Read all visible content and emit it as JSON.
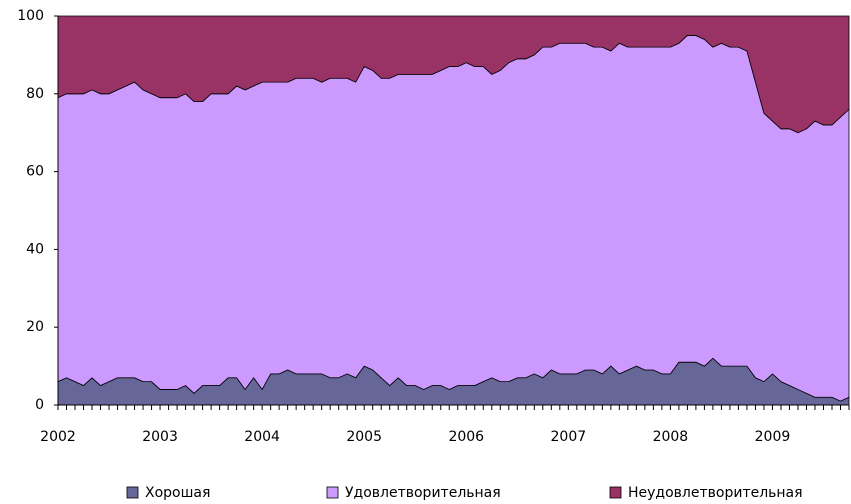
{
  "chart_data": {
    "type": "area",
    "stacked": true,
    "categories": [
      "2002",
      null,
      null,
      null,
      null,
      null,
      null,
      null,
      null,
      null,
      null,
      null,
      "2003",
      null,
      null,
      null,
      null,
      null,
      null,
      null,
      null,
      null,
      null,
      null,
      "2004",
      null,
      null,
      null,
      null,
      null,
      null,
      null,
      null,
      null,
      null,
      null,
      "2005",
      null,
      null,
      null,
      null,
      null,
      null,
      null,
      null,
      null,
      null,
      null,
      "2006",
      null,
      null,
      null,
      null,
      null,
      null,
      null,
      null,
      null,
      null,
      null,
      "2007",
      null,
      null,
      null,
      null,
      null,
      null,
      null,
      null,
      null,
      null,
      null,
      "2008",
      null,
      null,
      null,
      null,
      null,
      null,
      null,
      null,
      null,
      null,
      null,
      "2009",
      null,
      null,
      null,
      null,
      null,
      null,
      null,
      null,
      null
    ],
    "series": [
      {
        "name": "Хорошая",
        "color": "#666699",
        "values": [
          6,
          7,
          6,
          5,
          7,
          5,
          6,
          7,
          7,
          7,
          6,
          6,
          4,
          4,
          4,
          5,
          3,
          5,
          5,
          5,
          7,
          7,
          4,
          7,
          4,
          8,
          8,
          9,
          8,
          8,
          8,
          8,
          7,
          7,
          8,
          7,
          10,
          9,
          7,
          5,
          7,
          5,
          5,
          4,
          5,
          5,
          4,
          5,
          5,
          5,
          6,
          7,
          6,
          6,
          7,
          7,
          8,
          7,
          9,
          8,
          8,
          8,
          9,
          9,
          8,
          10,
          8,
          9,
          10,
          9,
          9,
          8,
          8,
          11,
          11,
          11,
          10,
          12,
          10,
          10,
          10,
          10,
          7,
          6,
          8,
          6,
          5,
          4,
          3,
          2,
          2,
          2,
          1,
          2
        ]
      },
      {
        "name": "Удовлетворительная",
        "color": "#cc99ff",
        "values": [
          73,
          73,
          74,
          75,
          74,
          75,
          74,
          74,
          75,
          76,
          75,
          74,
          75,
          75,
          75,
          75,
          75,
          73,
          75,
          75,
          73,
          75,
          77,
          75,
          79,
          75,
          75,
          74,
          76,
          76,
          76,
          75,
          77,
          77,
          76,
          76,
          77,
          77,
          77,
          79,
          78,
          80,
          80,
          81,
          80,
          81,
          83,
          82,
          83,
          82,
          81,
          78,
          80,
          82,
          82,
          82,
          82,
          85,
          83,
          85,
          85,
          85,
          84,
          83,
          84,
          81,
          85,
          83,
          82,
          83,
          83,
          84,
          84,
          82,
          84,
          84,
          84,
          80,
          83,
          82,
          82,
          81,
          76,
          69,
          65,
          65,
          66,
          66,
          68,
          71,
          70,
          70,
          73,
          74
        ]
      },
      {
        "name": "Неудовлетворительная",
        "color": "#993366",
        "values": [
          21,
          20,
          20,
          20,
          19,
          20,
          20,
          19,
          18,
          17,
          19,
          20,
          21,
          21,
          21,
          20,
          22,
          22,
          20,
          20,
          20,
          18,
          19,
          18,
          17,
          17,
          17,
          17,
          16,
          16,
          16,
          17,
          16,
          16,
          16,
          17,
          13,
          14,
          16,
          16,
          15,
          15,
          15,
          15,
          15,
          14,
          13,
          13,
          12,
          13,
          13,
          15,
          14,
          12,
          11,
          11,
          10,
          8,
          8,
          7,
          7,
          7,
          7,
          8,
          8,
          9,
          7,
          8,
          8,
          8,
          8,
          8,
          8,
          7,
          5,
          5,
          6,
          8,
          7,
          8,
          8,
          9,
          17,
          25,
          27,
          29,
          29,
          30,
          29,
          27,
          28,
          28,
          26,
          24
        ]
      }
    ],
    "ylim": [
      0,
      100
    ],
    "yticks": [
      0,
      20,
      40,
      60,
      80,
      100
    ],
    "grid": false,
    "legend": "bottom"
  }
}
